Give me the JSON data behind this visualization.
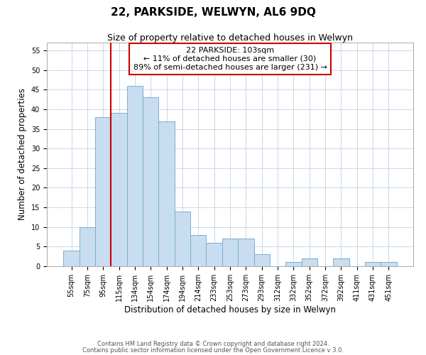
{
  "title": "22, PARKSIDE, WELWYN, AL6 9DQ",
  "subtitle": "Size of property relative to detached houses in Welwyn",
  "xlabel": "Distribution of detached houses by size in Welwyn",
  "ylabel": "Number of detached properties",
  "footnote1": "Contains HM Land Registry data © Crown copyright and database right 2024.",
  "footnote2": "Contains public sector information licensed under the Open Government Licence v 3.0.",
  "bar_labels": [
    "55sqm",
    "75sqm",
    "95sqm",
    "115sqm",
    "134sqm",
    "154sqm",
    "174sqm",
    "194sqm",
    "214sqm",
    "233sqm",
    "253sqm",
    "273sqm",
    "293sqm",
    "312sqm",
    "332sqm",
    "352sqm",
    "372sqm",
    "392sqm",
    "411sqm",
    "431sqm",
    "451sqm"
  ],
  "bar_values": [
    4,
    10,
    38,
    39,
    46,
    43,
    37,
    14,
    8,
    6,
    7,
    7,
    3,
    0,
    1,
    2,
    0,
    2,
    0,
    1,
    1
  ],
  "bar_color": "#c8ddf0",
  "bar_edge_color": "#7aaed0",
  "red_line_index": 2,
  "red_line_color": "#cc0000",
  "annotation_line1": "22 PARKSIDE: 103sqm",
  "annotation_line2": "← 11% of detached houses are smaller (30)",
  "annotation_line3": "89% of semi-detached houses are larger (231) →",
  "ylim": [
    0,
    57
  ],
  "yticks": [
    0,
    5,
    10,
    15,
    20,
    25,
    30,
    35,
    40,
    45,
    50,
    55
  ],
  "background_color": "#ffffff",
  "grid_color": "#c8d8e8",
  "title_fontsize": 11,
  "subtitle_fontsize": 9,
  "axis_label_fontsize": 8.5,
  "tick_fontsize": 7,
  "annotation_fontsize": 8,
  "footnote_fontsize": 6
}
